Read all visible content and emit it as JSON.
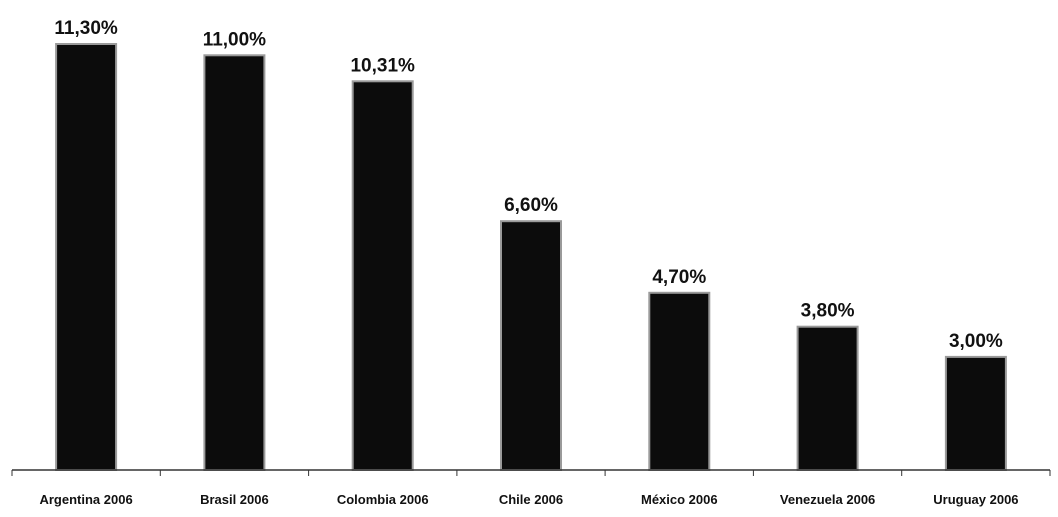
{
  "chart_data": {
    "type": "bar",
    "categories": [
      "Argentina 2006",
      "Brasil 2006",
      "Colombia 2006",
      "Chile 2006",
      "México 2006",
      "Venezuela 2006",
      "Uruguay 2006"
    ],
    "values": [
      11.3,
      11.0,
      10.31,
      6.6,
      4.7,
      3.8,
      3.0
    ],
    "data_labels": [
      "11,30%",
      "11,00%",
      "10,31%",
      "6,60%",
      "4,70%",
      "3,80%",
      "3,00%"
    ],
    "ylim": [
      0,
      12
    ],
    "grid": false,
    "legend": "none",
    "colors": {
      "bar_fill": "#0c0c0c",
      "bar_stroke": "#9a9a9a",
      "text": "#111111"
    }
  }
}
